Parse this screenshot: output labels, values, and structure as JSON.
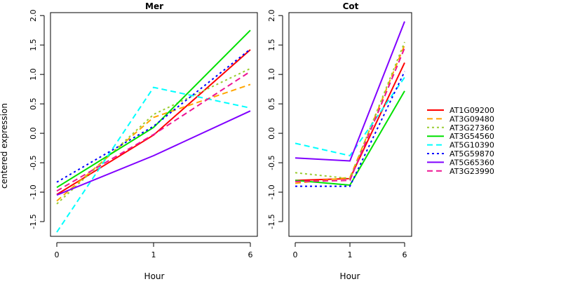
{
  "ylabel": "centered expression",
  "xlabel": "Hour",
  "ylim": [
    -1.75,
    2.05
  ],
  "yticks": [
    "-1.5",
    "-1.0",
    "-0.5",
    "0.0",
    "0.5",
    "1.0",
    "1.5",
    "2.0"
  ],
  "categories": [
    "0",
    "1",
    "6"
  ],
  "colors": {
    "AT1G09200": "#ff0000",
    "AT3G09480": "#ffa500",
    "AT3G27360": "#9acd32",
    "AT3G54560": "#00e000",
    "AT5G10390": "#00ffff",
    "AT5G59870": "#0000ff",
    "AT5G65360": "#8000ff",
    "AT3G23990": "#ee1493"
  },
  "chart_data": [
    {
      "type": "line",
      "title": "Mer",
      "xlabel": "Hour",
      "ylabel": "centered expression",
      "categories": [
        "0",
        "1",
        "6"
      ],
      "ylim": [
        -1.75,
        2.05
      ],
      "series": [
        {
          "name": "AT1G09200",
          "values": [
            -1.04,
            -0.03,
            1.42
          ],
          "dash": "solid"
        },
        {
          "name": "AT3G09480",
          "values": [
            -1.15,
            0.27,
            0.83
          ],
          "dash": "dashed"
        },
        {
          "name": "AT3G27360",
          "values": [
            -1.2,
            0.32,
            1.1
          ],
          "dash": "dotted"
        },
        {
          "name": "AT3G54560",
          "values": [
            -0.92,
            0.1,
            1.75
          ],
          "dash": "solid"
        },
        {
          "name": "AT5G10390",
          "values": [
            -1.68,
            0.78,
            0.43
          ],
          "dash": "dashed"
        },
        {
          "name": "AT5G59870",
          "values": [
            -0.83,
            0.12,
            1.43
          ],
          "dash": "dotted"
        },
        {
          "name": "AT5G65360",
          "values": [
            -1.05,
            -0.38,
            0.38
          ],
          "dash": "solid"
        },
        {
          "name": "AT3G23990",
          "values": [
            -0.98,
            -0.02,
            1.05
          ],
          "dash": "dashed"
        }
      ]
    },
    {
      "type": "line",
      "title": "Cot",
      "xlabel": "Hour",
      "categories": [
        "0",
        "1",
        "6"
      ],
      "ylim": [
        -1.75,
        2.05
      ],
      "series": [
        {
          "name": "AT1G09200",
          "values": [
            -0.8,
            -0.77,
            1.2
          ],
          "dash": "solid"
        },
        {
          "name": "AT3G09480",
          "values": [
            -0.85,
            -0.75,
            1.5
          ],
          "dash": "dashed"
        },
        {
          "name": "AT3G27360",
          "values": [
            -0.67,
            -0.77,
            1.55
          ],
          "dash": "dotted"
        },
        {
          "name": "AT3G54560",
          "values": [
            -0.8,
            -0.88,
            0.72
          ],
          "dash": "solid"
        },
        {
          "name": "AT5G10390",
          "values": [
            -0.17,
            -0.38,
            0.95
          ],
          "dash": "dashed"
        },
        {
          "name": "AT5G59870",
          "values": [
            -0.9,
            -0.9,
            1.05
          ],
          "dash": "dotted"
        },
        {
          "name": "AT5G65360",
          "values": [
            -0.42,
            -0.47,
            1.9
          ],
          "dash": "solid"
        },
        {
          "name": "AT3G23990",
          "values": [
            -0.82,
            -0.8,
            1.45
          ],
          "dash": "dashed"
        }
      ]
    }
  ]
}
